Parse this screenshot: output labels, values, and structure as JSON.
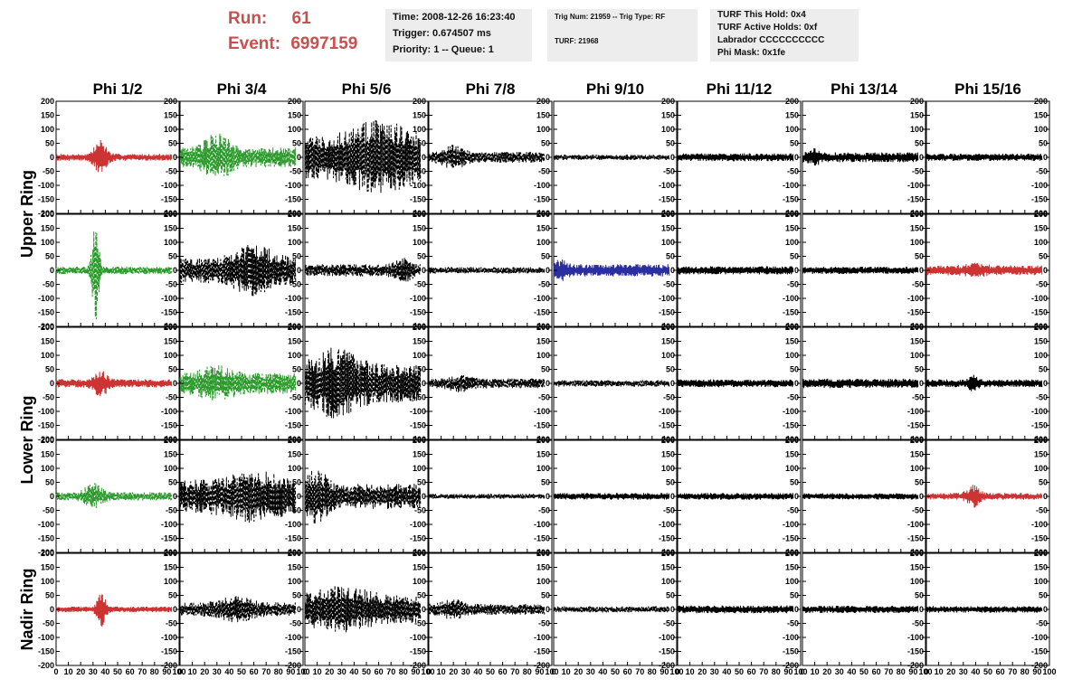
{
  "header": {
    "run_label": "Run:",
    "run_value": "61",
    "event_label": "Event:",
    "event_value": "6997159",
    "run_color": "#c9504f"
  },
  "info_time": {
    "time": "Time: 2008-12-26 16:23:40",
    "trigger": "Trigger: 0.674507 ms",
    "priority": "Priority: 1 -- Queue: 1"
  },
  "info_trig": {
    "trig": "Trig Num: 21959 -- Trig Type: RF",
    "turf": "TURF: 21968"
  },
  "info_turf": {
    "hold": "TURF This Hold: 0x4",
    "active": "TURF Active Holds: 0xf",
    "labrador": "Labrador CCCCCCCCCC",
    "phimask": "Phi Mask: 0x1fe"
  },
  "chart_data": {
    "type": "line",
    "columns": [
      "Phi 1/2",
      "Phi 3/4",
      "Phi 5/6",
      "Phi 7/8",
      "Phi 9/10",
      "Phi 11/12",
      "Phi 13/14",
      "Phi 15/16"
    ],
    "ring_labels": [
      {
        "text": "Upper Ring",
        "rows": [
          0,
          1
        ]
      },
      {
        "text": "Lower Ring",
        "rows": [
          2,
          3
        ]
      },
      {
        "text": "Nadir Ring",
        "rows": [
          4
        ]
      }
    ],
    "xlim": [
      0,
      100
    ],
    "ylim": [
      -200,
      200
    ],
    "xticks": [
      "0",
      "10",
      "20",
      "30",
      "40",
      "50",
      "60",
      "70",
      "80",
      "90",
      "100"
    ],
    "yticks": [
      "200",
      "150",
      "100",
      "50",
      "0",
      "-50",
      "-100",
      "-150",
      "-200"
    ],
    "colors": {
      "red": "#cc3333",
      "green": "#2a9a2a",
      "blue": "#2b2e9e",
      "black": "#000000"
    },
    "traces": [
      [
        {
          "color": "red",
          "style": "solid",
          "amp": 12,
          "burst": {
            "center": 36,
            "width": 6,
            "amp": 55
          }
        },
        {
          "color": "green",
          "style": "dashed",
          "amp": 35,
          "burst": {
            "center": 30,
            "width": 12,
            "amp": 55
          }
        },
        {
          "color": "black",
          "style": "dashed",
          "amp": 80,
          "burst": {
            "center": 60,
            "width": 25,
            "amp": 60
          }
        },
        {
          "color": "black",
          "style": "dashed",
          "amp": 20,
          "burst": {
            "center": 20,
            "width": 10,
            "amp": 25
          }
        },
        {
          "color": "black",
          "style": "dashed",
          "amp": 10,
          "burst": null
        },
        {
          "color": "black",
          "style": "solid",
          "amp": 14,
          "burst": null
        },
        {
          "color": "black",
          "style": "solid",
          "amp": 18,
          "burst": {
            "center": 10,
            "width": 5,
            "amp": 15
          }
        },
        {
          "color": "black",
          "style": "solid",
          "amp": 13,
          "burst": null
        }
      ],
      [
        {
          "color": "green",
          "style": "dashed",
          "amp": 14,
          "burst": {
            "center": 32,
            "width": 3,
            "amp": 190
          }
        },
        {
          "color": "black",
          "style": "dashed",
          "amp": 45,
          "burst": {
            "center": 60,
            "width": 20,
            "amp": 50
          }
        },
        {
          "color": "black",
          "style": "dashed",
          "amp": 22,
          "burst": {
            "center": 80,
            "width": 8,
            "amp": 25
          }
        },
        {
          "color": "black",
          "style": "dashed",
          "amp": 12,
          "burst": null
        },
        {
          "color": "blue",
          "style": "solid",
          "amp": 22,
          "burst": {
            "center": 5,
            "width": 6,
            "amp": 20
          }
        },
        {
          "color": "black",
          "style": "solid",
          "amp": 15,
          "burst": null
        },
        {
          "color": "black",
          "style": "solid",
          "amp": 13,
          "burst": null
        },
        {
          "color": "red",
          "style": "solid",
          "amp": 18,
          "burst": {
            "center": 40,
            "width": 10,
            "amp": 10
          }
        }
      ],
      [
        {
          "color": "red",
          "style": "solid",
          "amp": 15,
          "burst": {
            "center": 36,
            "width": 6,
            "amp": 40
          }
        },
        {
          "color": "green",
          "style": "dashed",
          "amp": 38,
          "burst": {
            "center": 30,
            "width": 15,
            "amp": 30
          }
        },
        {
          "color": "black",
          "style": "dashed",
          "amp": 70,
          "burst": {
            "center": 25,
            "width": 20,
            "amp": 60
          }
        },
        {
          "color": "black",
          "style": "dashed",
          "amp": 18,
          "burst": {
            "center": 25,
            "width": 10,
            "amp": 15
          }
        },
        {
          "color": "black",
          "style": "dashed",
          "amp": 12,
          "burst": null
        },
        {
          "color": "black",
          "style": "solid",
          "amp": 14,
          "burst": null
        },
        {
          "color": "black",
          "style": "solid",
          "amp": 17,
          "burst": null
        },
        {
          "color": "black",
          "style": "solid",
          "amp": 14,
          "burst": {
            "center": 38,
            "width": 4,
            "amp": 18
          }
        }
      ],
      [
        {
          "color": "green",
          "style": "dashed",
          "amp": 15,
          "burst": {
            "center": 30,
            "width": 8,
            "amp": 35
          }
        },
        {
          "color": "black",
          "style": "dashed",
          "amp": 60,
          "burst": {
            "center": 60,
            "width": 25,
            "amp": 35
          }
        },
        {
          "color": "black",
          "style": "dashed",
          "amp": 45,
          "burst": {
            "center": 10,
            "width": 10,
            "amp": 60
          }
        },
        {
          "color": "black",
          "style": "dashed",
          "amp": 9,
          "burst": null
        },
        {
          "color": "black",
          "style": "solid",
          "amp": 12,
          "burst": null
        },
        {
          "color": "black",
          "style": "solid",
          "amp": 12,
          "burst": null
        },
        {
          "color": "black",
          "style": "solid",
          "amp": 11,
          "burst": null
        },
        {
          "color": "red",
          "style": "solid",
          "amp": 12,
          "burst": {
            "center": 38,
            "width": 6,
            "amp": 30
          }
        }
      ],
      [
        {
          "color": "red",
          "style": "solid",
          "amp": 10,
          "burst": {
            "center": 37,
            "width": 4,
            "amp": 55
          }
        },
        {
          "color": "black",
          "style": "dashed",
          "amp": 25,
          "burst": {
            "center": 45,
            "width": 15,
            "amp": 25
          }
        },
        {
          "color": "black",
          "style": "dashed",
          "amp": 50,
          "burst": {
            "center": 30,
            "width": 25,
            "amp": 40
          }
        },
        {
          "color": "black",
          "style": "dashed",
          "amp": 20,
          "burst": {
            "center": 20,
            "width": 10,
            "amp": 20
          }
        },
        {
          "color": "black",
          "style": "dashed",
          "amp": 11,
          "burst": null
        },
        {
          "color": "black",
          "style": "solid",
          "amp": 14,
          "burst": null
        },
        {
          "color": "black",
          "style": "solid",
          "amp": 13,
          "burst": null
        },
        {
          "color": "black",
          "style": "solid",
          "amp": 12,
          "burst": null
        }
      ]
    ]
  }
}
